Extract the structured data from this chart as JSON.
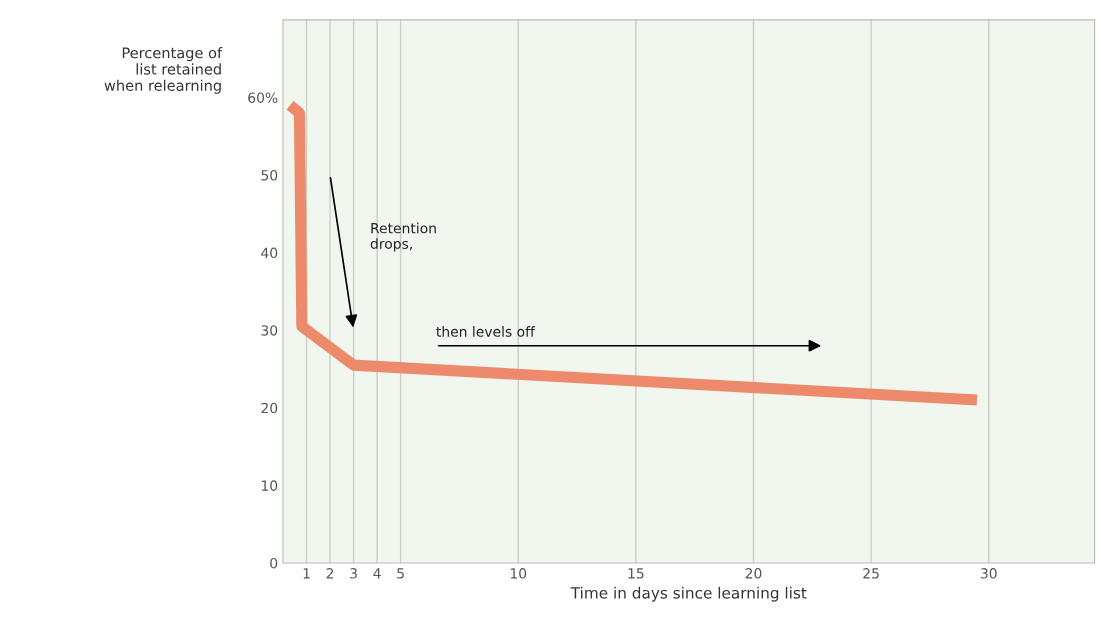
{
  "chart_data": {
    "type": "line",
    "xlabel": "Time in days since learning list",
    "ylabel": "Percentage of\nlist retained\nwhen relearning",
    "x": [
      0.3,
      0.7,
      0.8,
      3,
      29.5
    ],
    "series": [
      {
        "color": "#ee8a6c",
        "values": [
          59,
          58,
          30.5,
          25.5,
          21
        ]
      }
    ],
    "xlim": [
      0,
      34.5
    ],
    "xticks": [
      1,
      2,
      3,
      4,
      5,
      10,
      15,
      20,
      25,
      30
    ],
    "ylim": [
      0,
      70
    ],
    "yticks": [
      0,
      10,
      20,
      30,
      40,
      50,
      {
        "value": 60,
        "label": "60%"
      }
    ],
    "grid": "x",
    "marker": "none",
    "line_style": "solid",
    "annotations": [
      "Retention\ndrops,",
      "then levels off"
    ]
  }
}
